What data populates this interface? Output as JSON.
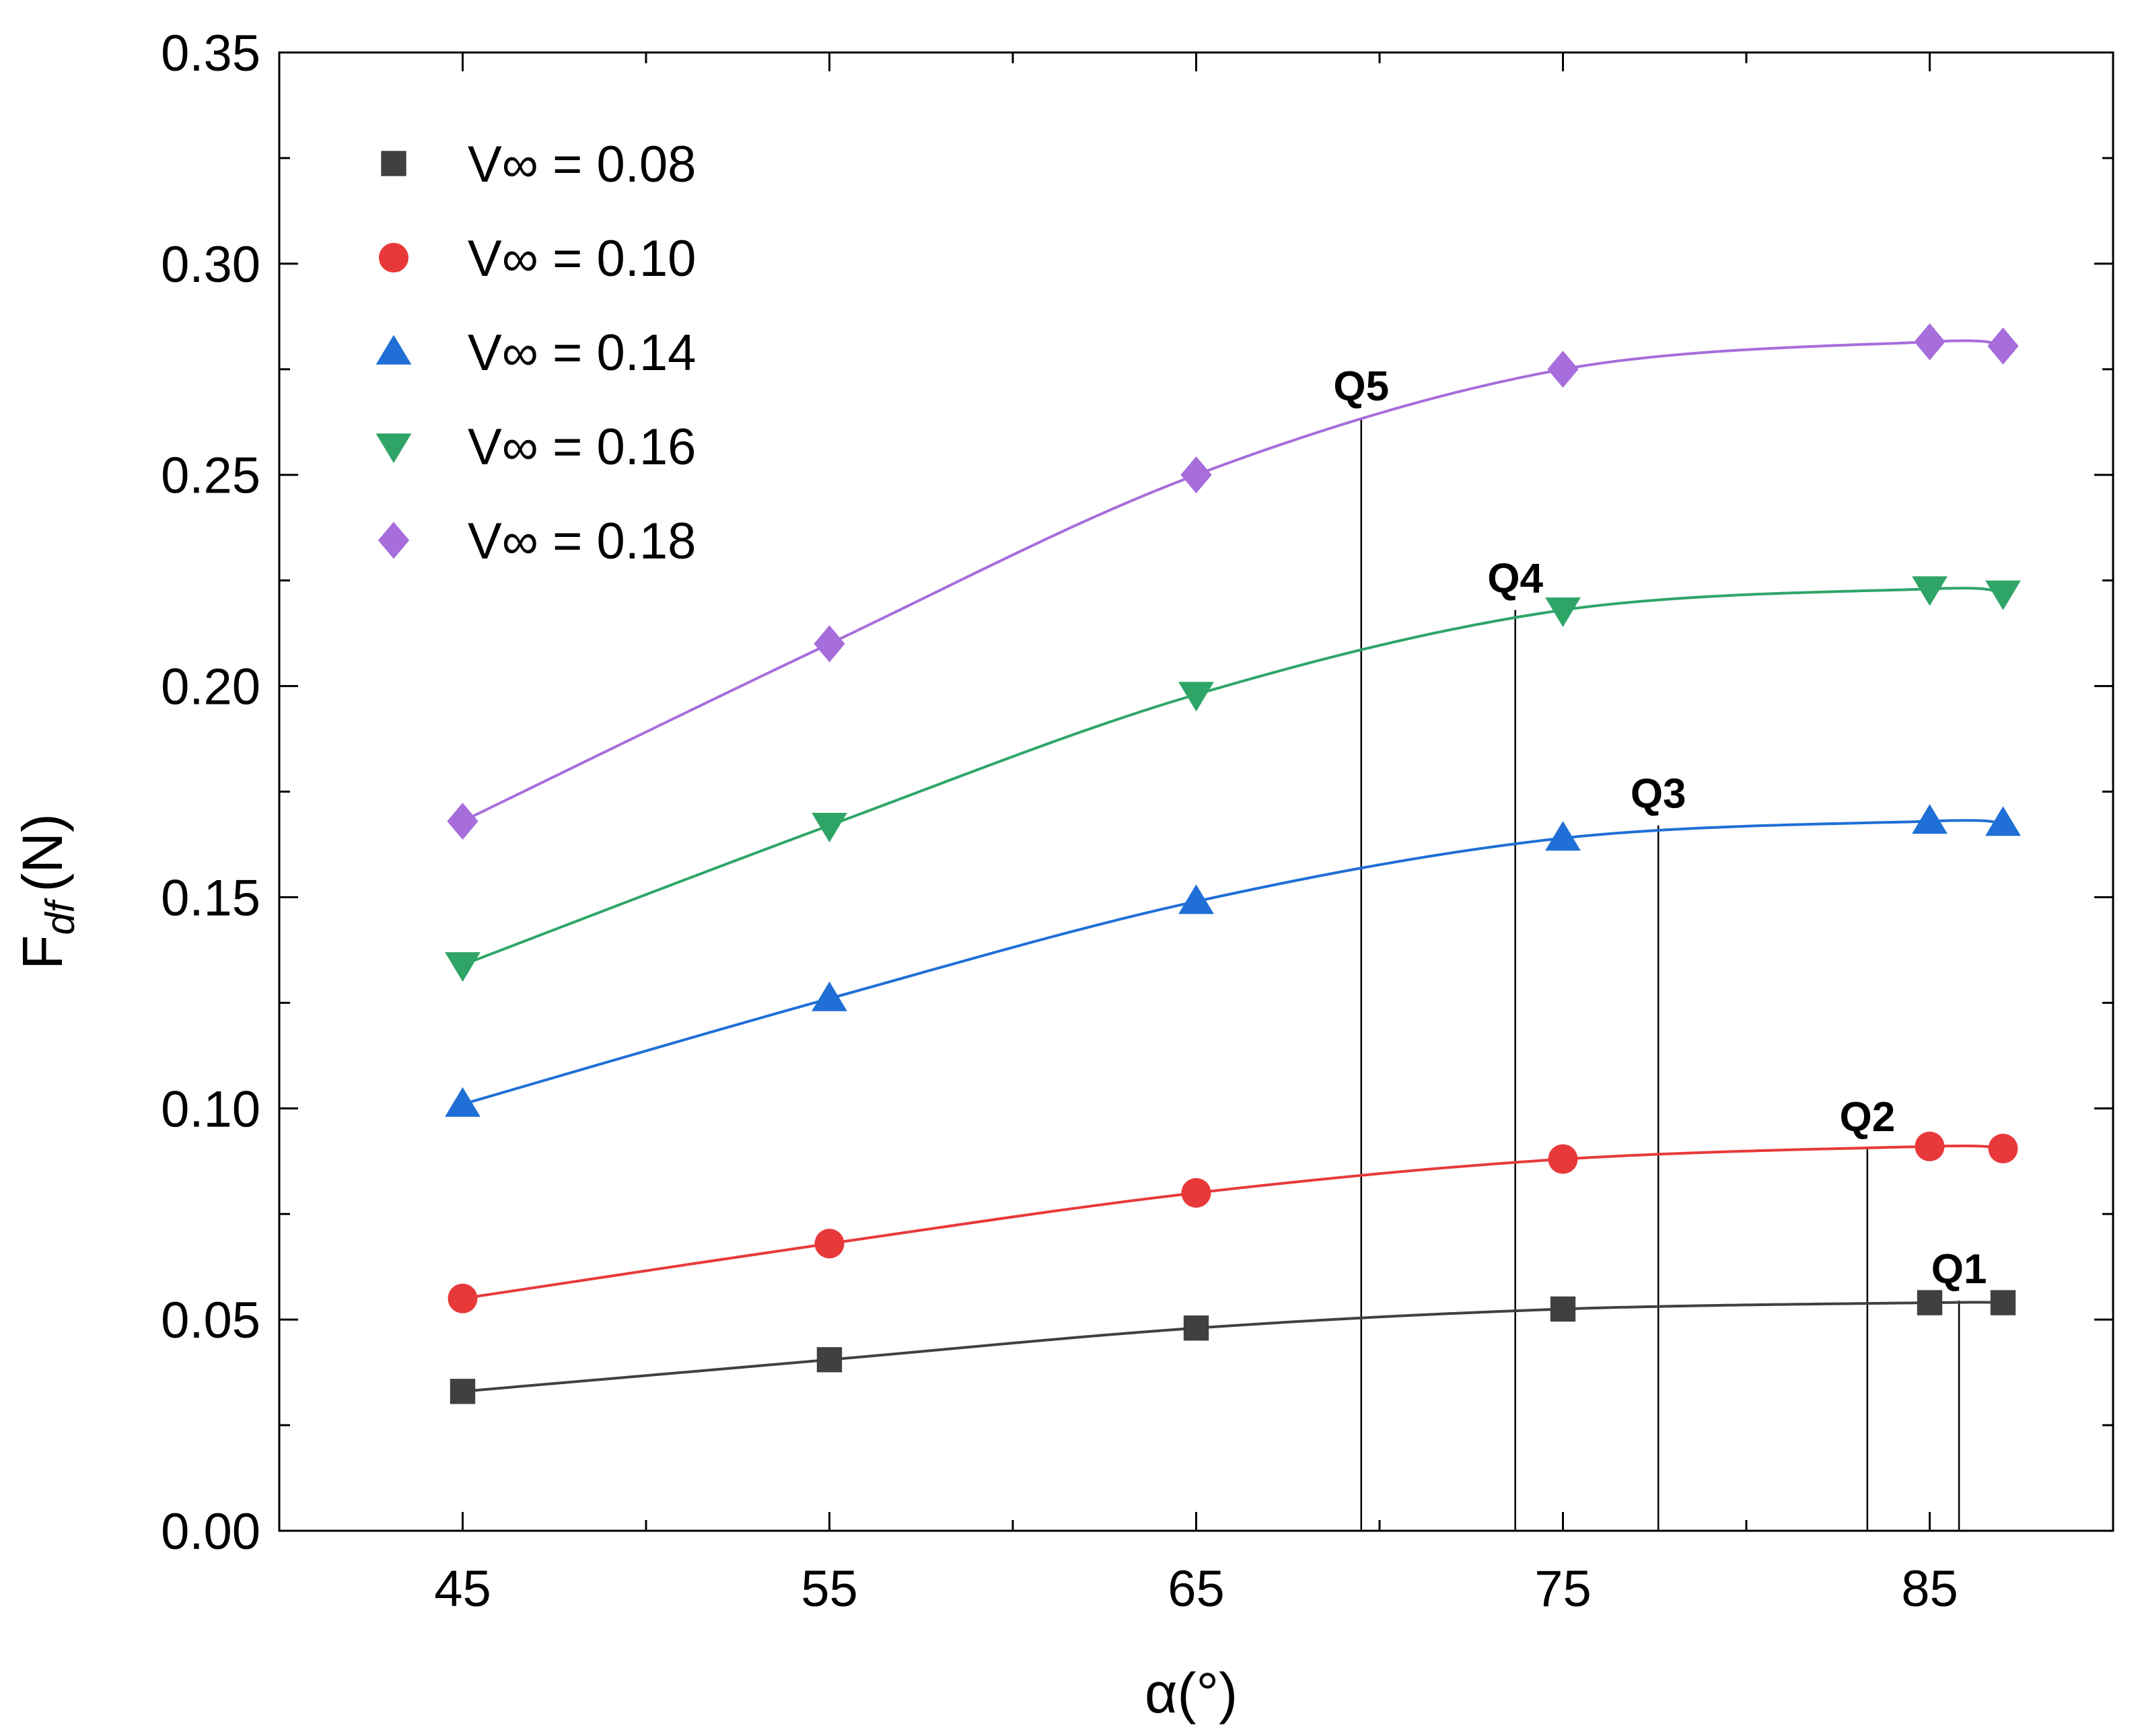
{
  "chart_data": {
    "type": "line",
    "title": "",
    "xlabel": "α(°)",
    "ylabel": "F",
    "ylabel_subscript": "df",
    "ylabel_unit": "(N)",
    "xlim": [
      40,
      90
    ],
    "ylim": [
      0,
      0.35
    ],
    "x_ticks": [
      45,
      55,
      65,
      75,
      85
    ],
    "x_tick_labels": [
      "45",
      "55",
      "65",
      "75",
      "85"
    ],
    "y_ticks": [
      0,
      0.05,
      0.1,
      0.15,
      0.2,
      0.25,
      0.3,
      0.35
    ],
    "y_tick_labels": [
      "0.00",
      "0.05",
      "0.10",
      "0.15",
      "0.20",
      "0.25",
      "0.30",
      "0.35"
    ],
    "grid": false,
    "legend_position": "top-left",
    "x": [
      45,
      55,
      65,
      75,
      85,
      87
    ],
    "series": [
      {
        "name": "V∞ = 0.08",
        "marker": "square",
        "color": "#404040",
        "values": [
          0.033,
          0.0405,
          0.048,
          0.0525,
          0.054,
          0.054
        ]
      },
      {
        "name": "V∞ = 0.10",
        "marker": "circle",
        "color": "#e8393a",
        "values": [
          0.055,
          0.068,
          0.08,
          0.088,
          0.091,
          0.0905
        ]
      },
      {
        "name": "V∞ = 0.14",
        "marker": "triangle-up",
        "color": "#1f6fd6",
        "values": [
          0.101,
          0.126,
          0.149,
          0.164,
          0.168,
          0.1675
        ]
      },
      {
        "name": "V∞ = 0.16",
        "marker": "triangle-down",
        "color": "#2ea567",
        "values": [
          0.134,
          0.167,
          0.198,
          0.218,
          0.223,
          0.222
        ]
      },
      {
        "name": "V∞ = 0.18",
        "marker": "diamond",
        "color": "#a66ddb",
        "values": [
          0.168,
          0.21,
          0.25,
          0.275,
          0.2815,
          0.2805
        ]
      }
    ],
    "annotations": [
      {
        "label": "Q1",
        "x": 85.8,
        "y": 0.0545
      },
      {
        "label": "Q2",
        "x": 83.3,
        "y": 0.0905
      },
      {
        "label": "Q3",
        "x": 77.6,
        "y": 0.167
      },
      {
        "label": "Q4",
        "x": 73.7,
        "y": 0.218
      },
      {
        "label": "Q5",
        "x": 69.5,
        "y": 0.2635
      }
    ]
  }
}
